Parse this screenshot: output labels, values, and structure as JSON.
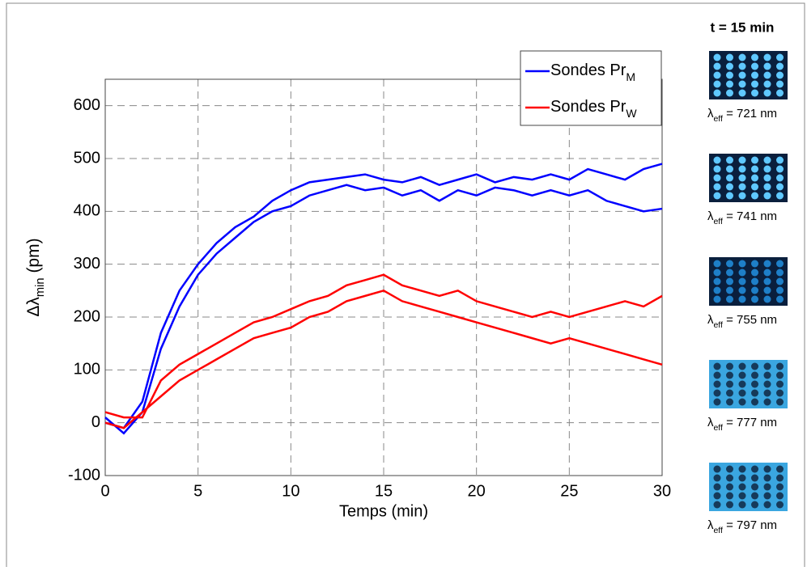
{
  "chart_data": {
    "type": "line",
    "y_label": {
      "symbol": "Δλ",
      "sub": "min",
      "text": " (pm)"
    },
    "x_label": "Temps (min)",
    "x": [
      0,
      1,
      2,
      3,
      4,
      5,
      6,
      7,
      8,
      9,
      10,
      11,
      12,
      13,
      14,
      15,
      16,
      17,
      18,
      19,
      20,
      21,
      22,
      23,
      24,
      25,
      26,
      27,
      28,
      29,
      30
    ],
    "series": [
      {
        "name": "Sondes Pr",
        "name_sub": "M",
        "color": "#0000ff",
        "values": [
          0,
          -10,
          40,
          170,
          250,
          300,
          340,
          370,
          390,
          420,
          440,
          455,
          460,
          465,
          470,
          460,
          455,
          465,
          450,
          460,
          470,
          455,
          465,
          460,
          470,
          460,
          480,
          470,
          460,
          480,
          490
        ]
      },
      {
        "color": "#0000ff",
        "values": [
          10,
          -20,
          20,
          140,
          220,
          280,
          320,
          350,
          380,
          400,
          410,
          430,
          440,
          450,
          440,
          445,
          430,
          440,
          420,
          440,
          430,
          445,
          440,
          430,
          440,
          430,
          440,
          420,
          410,
          400,
          405
        ]
      },
      {
        "name": "Sondes Pr",
        "name_sub": "W",
        "color": "#ff0000",
        "values": [
          20,
          10,
          10,
          80,
          110,
          130,
          150,
          170,
          190,
          200,
          215,
          230,
          240,
          260,
          270,
          280,
          260,
          250,
          240,
          250,
          230,
          220,
          210,
          200,
          210,
          200,
          210,
          220,
          230,
          220,
          240
        ]
      },
      {
        "color": "#ff0000",
        "values": [
          0,
          -10,
          20,
          50,
          80,
          100,
          120,
          140,
          160,
          170,
          180,
          200,
          210,
          230,
          240,
          250,
          230,
          220,
          210,
          200,
          190,
          180,
          170,
          160,
          150,
          160,
          150,
          140,
          130,
          120,
          110
        ]
      }
    ],
    "xlim": [
      0,
      30
    ],
    "xticks": [
      0,
      5,
      10,
      15,
      20,
      25,
      30
    ],
    "ylim": [
      -100,
      650
    ],
    "yticks": [
      -100,
      0,
      100,
      200,
      300,
      400,
      500,
      600
    ],
    "grid": true,
    "legend": "upper right"
  },
  "panel": {
    "title": "t = 15 min",
    "images": [
      {
        "symbol": "λ",
        "sub": "eff",
        "text": " = 721 nm"
      },
      {
        "symbol": "λ",
        "sub": "eff",
        "text": " = 741 nm"
      },
      {
        "symbol": "λ",
        "sub": "eff",
        "text": " = 755 nm"
      },
      {
        "symbol": "λ",
        "sub": "eff",
        "text": " = 777 nm"
      },
      {
        "symbol": "λ",
        "sub": "eff",
        "text": " = 797 nm"
      }
    ]
  }
}
